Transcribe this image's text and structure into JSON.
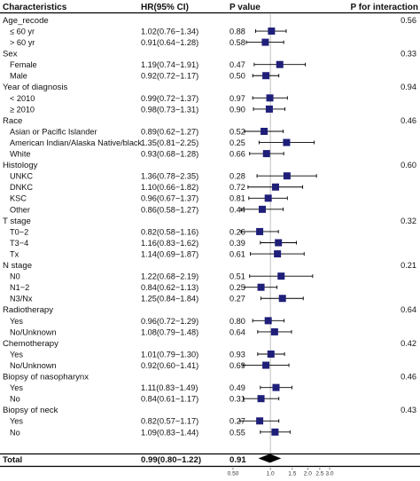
{
  "chart_data": {
    "type": "forest",
    "columns": [
      "Characteristics",
      "HR(95% CI)",
      "P value",
      "P for interaction"
    ],
    "x_ticks": [
      "0.50",
      "1.0",
      "1.5",
      "2.0",
      "2.5",
      "3.0"
    ],
    "x_tick_values": [
      0.5,
      1.0,
      1.5,
      2.0,
      2.5,
      3.0
    ],
    "x_range": [
      0.5,
      3.0
    ],
    "x_scale": "log",
    "reference_line": 1.0,
    "marker_color": "#1f1f7a",
    "rows": [
      {
        "kind": "group",
        "label": "Age_recode",
        "p_interaction": "0.56"
      },
      {
        "kind": "item",
        "label": "≤ 60 yr",
        "hr_text": "1.02(0.76−1.34)",
        "p": "0.88",
        "hr": 1.02,
        "lo": 0.76,
        "hi": 1.34
      },
      {
        "kind": "item",
        "label": "> 60 yr",
        "hr_text": "0.91(0.64−1.28)",
        "p": "0.58",
        "hr": 0.91,
        "lo": 0.64,
        "hi": 1.28
      },
      {
        "kind": "group",
        "label": "Sex",
        "p_interaction": "0.33"
      },
      {
        "kind": "item",
        "label": "Female",
        "hr_text": "1.19(0.74−1.91)",
        "p": "0.47",
        "hr": 1.19,
        "lo": 0.74,
        "hi": 1.91
      },
      {
        "kind": "item",
        "label": "Male",
        "hr_text": "0.92(0.72−1.17)",
        "p": "0.50",
        "hr": 0.92,
        "lo": 0.72,
        "hi": 1.17
      },
      {
        "kind": "group",
        "label": "Year of diagnosis",
        "p_interaction": "0.94"
      },
      {
        "kind": "item",
        "label": "< 2010",
        "hr_text": "0.99(0.72−1.37)",
        "p": "0.97",
        "hr": 0.99,
        "lo": 0.72,
        "hi": 1.37
      },
      {
        "kind": "item",
        "label": "≥ 2010",
        "hr_text": "0.98(0.73−1.31)",
        "p": "0.90",
        "hr": 0.98,
        "lo": 0.73,
        "hi": 1.31
      },
      {
        "kind": "group",
        "label": "Race",
        "p_interaction": "0.46"
      },
      {
        "kind": "item",
        "label": "Asian or Pacific Islander",
        "hr_text": "0.89(0.62−1.27)",
        "p": "0.52",
        "hr": 0.89,
        "lo": 0.62,
        "hi": 1.27
      },
      {
        "kind": "item",
        "label": "American Indian/Alaska Native/black",
        "hr_text": "1.35(0.81−2.25)",
        "p": "0.25",
        "hr": 1.35,
        "lo": 0.81,
        "hi": 2.25
      },
      {
        "kind": "item",
        "label": "White",
        "hr_text": "0.93(0.68−1.28)",
        "p": "0.66",
        "hr": 0.93,
        "lo": 0.68,
        "hi": 1.28
      },
      {
        "kind": "group",
        "label": "Histology",
        "p_interaction": "0.60"
      },
      {
        "kind": "item",
        "label": "UNKC",
        "hr_text": "1.36(0.78−2.35)",
        "p": "0.28",
        "hr": 1.36,
        "lo": 0.78,
        "hi": 2.35
      },
      {
        "kind": "item",
        "label": "DNKC",
        "hr_text": "1.10(0.66−1.82)",
        "p": "0.72",
        "hr": 1.1,
        "lo": 0.66,
        "hi": 1.82
      },
      {
        "kind": "item",
        "label": "KSC",
        "hr_text": "0.96(0.67−1.37)",
        "p": "0.81",
        "hr": 0.96,
        "lo": 0.67,
        "hi": 1.37
      },
      {
        "kind": "item",
        "label": "Other",
        "hr_text": "0.86(0.58−1.27)",
        "p": "0.44",
        "hr": 0.86,
        "lo": 0.58,
        "hi": 1.27
      },
      {
        "kind": "group",
        "label": "T stage",
        "p_interaction": "0.32"
      },
      {
        "kind": "item",
        "label": "T0−2",
        "hr_text": "0.82(0.58−1.16)",
        "p": "0.26",
        "hr": 0.82,
        "lo": 0.58,
        "hi": 1.16
      },
      {
        "kind": "item",
        "label": "T3−4",
        "hr_text": "1.16(0.83−1.62)",
        "p": "0.39",
        "hr": 1.16,
        "lo": 0.83,
        "hi": 1.62
      },
      {
        "kind": "item",
        "label": "Tx",
        "hr_text": "1.14(0.69−1.87)",
        "p": "0.61",
        "hr": 1.14,
        "lo": 0.69,
        "hi": 1.87
      },
      {
        "kind": "group",
        "label": "N stage",
        "p_interaction": "0.21"
      },
      {
        "kind": "item",
        "label": "N0",
        "hr_text": "1.22(0.68−2.19)",
        "p": "0.51",
        "hr": 1.22,
        "lo": 0.68,
        "hi": 2.19
      },
      {
        "kind": "item",
        "label": "N1−2",
        "hr_text": "0.84(0.62−1.13)",
        "p": "0.25",
        "hr": 0.84,
        "lo": 0.62,
        "hi": 1.13
      },
      {
        "kind": "item",
        "label": "N3/Nx",
        "hr_text": "1.25(0.84−1.84)",
        "p": "0.27",
        "hr": 1.25,
        "lo": 0.84,
        "hi": 1.84
      },
      {
        "kind": "group",
        "label": "Radiotherapy",
        "p_interaction": "0.64"
      },
      {
        "kind": "item",
        "label": "Yes",
        "hr_text": "0.96(0.72−1.29)",
        "p": "0.80",
        "hr": 0.96,
        "lo": 0.72,
        "hi": 1.29
      },
      {
        "kind": "item",
        "label": "No/Unknown",
        "hr_text": "1.08(0.79−1.48)",
        "p": "0.64",
        "hr": 1.08,
        "lo": 0.79,
        "hi": 1.48
      },
      {
        "kind": "group",
        "label": "Chemotherapy",
        "p_interaction": "0.42"
      },
      {
        "kind": "item",
        "label": "Yes",
        "hr_text": "1.01(0.79−1.30)",
        "p": "0.93",
        "hr": 1.01,
        "lo": 0.79,
        "hi": 1.3
      },
      {
        "kind": "item",
        "label": "No/Unknown",
        "hr_text": "0.92(0.60−1.41)",
        "p": "0.69",
        "hr": 0.92,
        "lo": 0.6,
        "hi": 1.41
      },
      {
        "kind": "group",
        "label": "Biopsy of nasopharynx",
        "p_interaction": "0.46"
      },
      {
        "kind": "item",
        "label": "Yes",
        "hr_text": "1.11(0.83−1.49)",
        "p": "0.49",
        "hr": 1.11,
        "lo": 0.83,
        "hi": 1.49
      },
      {
        "kind": "item",
        "label": "No",
        "hr_text": "0.84(0.61−1.17)",
        "p": "0.31",
        "hr": 0.84,
        "lo": 0.61,
        "hi": 1.17
      },
      {
        "kind": "group",
        "label": "Biopsy of neck",
        "p_interaction": "0.43"
      },
      {
        "kind": "item",
        "label": "Yes",
        "hr_text": "0.82(0.57−1.17)",
        "p": "0.27",
        "hr": 0.82,
        "lo": 0.57,
        "hi": 1.17
      },
      {
        "kind": "item",
        "label": "No",
        "hr_text": "1.09(0.83−1.44)",
        "p": "0.55",
        "hr": 1.09,
        "lo": 0.83,
        "hi": 1.44
      }
    ],
    "total": {
      "label": "Total",
      "hr_text": "0.99(0.80−1.22)",
      "p": "0.91",
      "hr": 0.99,
      "lo": 0.8,
      "hi": 1.22
    }
  }
}
